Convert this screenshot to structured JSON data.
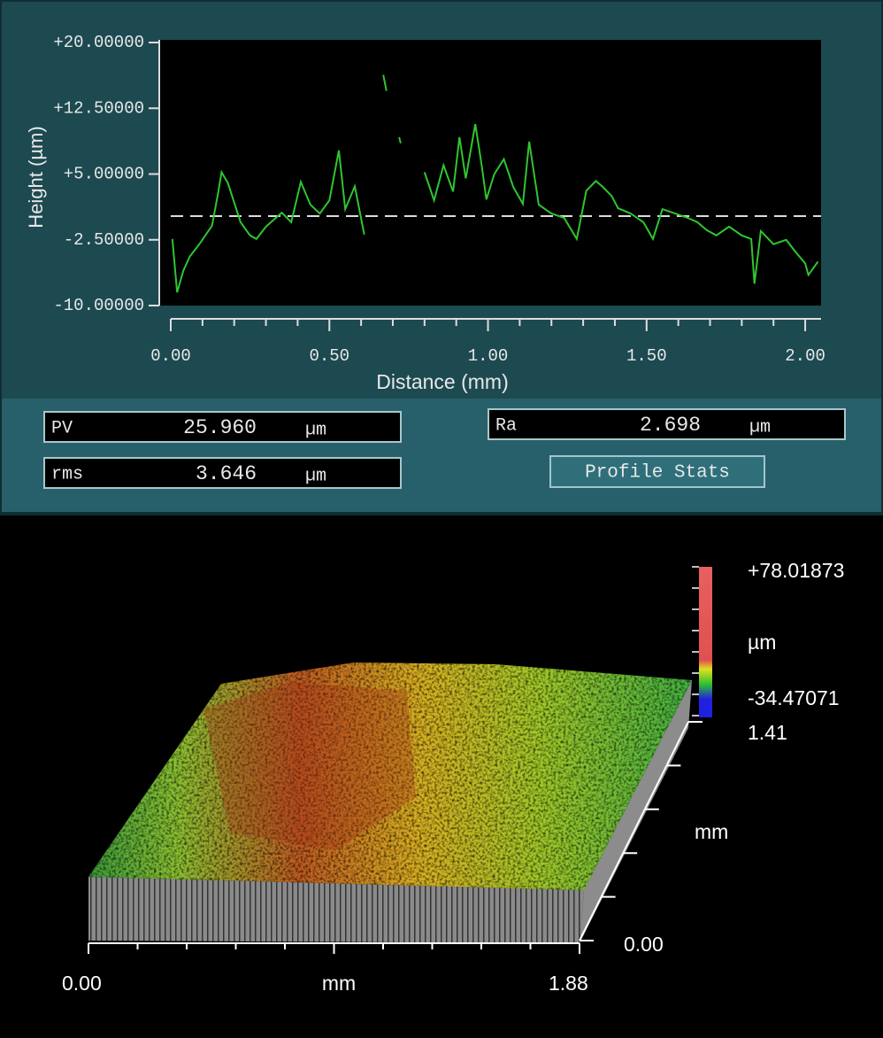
{
  "chart_data": {
    "type": "line",
    "y_label": "Height (µm)",
    "x_label": "Distance (mm)",
    "xlim": [
      0,
      2.05
    ],
    "ylim": [
      -10,
      20
    ],
    "xticks": [
      {
        "value": 0,
        "label": "0.00"
      },
      {
        "value": 0.5,
        "label": "0.50"
      },
      {
        "value": 1,
        "label": "1.00"
      },
      {
        "value": 1.5,
        "label": "1.50"
      },
      {
        "value": 2,
        "label": "2.00"
      }
    ],
    "xminorticks": [
      0.1,
      0.2,
      0.3,
      0.4,
      0.6,
      0.7,
      0.8,
      0.9,
      1.1,
      1.2,
      1.3,
      1.4,
      1.6,
      1.7,
      1.8,
      1.9
    ],
    "yticks": [
      {
        "value": 20,
        "label": "+20.00000"
      },
      {
        "value": 12.5,
        "label": "+12.50000"
      },
      {
        "value": 5,
        "label": "+5.00000"
      },
      {
        "value": -2.5,
        "label": "-2.50000"
      },
      {
        "value": -10,
        "label": "-10.00000"
      }
    ],
    "reference_line": 0.2,
    "series": [
      {
        "color": "#2fc62f",
        "x": [
          0.005,
          0.02,
          0.04,
          0.06,
          0.09,
          0.13,
          0.15,
          0.16,
          0.18,
          0.22,
          0.25,
          0.27,
          0.3,
          0.35,
          0.38,
          0.41,
          0.44,
          0.47,
          0.5,
          0.53,
          0.55,
          0.58,
          0.61,
          null,
          0.67,
          0.68,
          null,
          0.72,
          0.725,
          null,
          0.8,
          0.83,
          0.86,
          0.89,
          0.91,
          0.93,
          0.96,
          0.98,
          0.995,
          1.02,
          1.05,
          1.08,
          1.11,
          1.13,
          1.16,
          1.2,
          1.24,
          1.28,
          1.31,
          1.34,
          1.36,
          1.39,
          1.41,
          1.45,
          1.49,
          1.52,
          1.55,
          1.59,
          1.63,
          1.66,
          1.69,
          1.72,
          1.76,
          1.8,
          1.83,
          1.84,
          1.86,
          1.9,
          1.94,
          1.97,
          2.0,
          2.01,
          2.04
        ],
        "values": [
          -2.4,
          -8.5,
          -6,
          -4.4,
          -3,
          -0.9,
          3,
          5.2,
          4,
          -0.5,
          -2,
          -2.4,
          -1,
          0.6,
          -0.5,
          4.1,
          1.5,
          0.5,
          2,
          7.7,
          1,
          3.6,
          -1.9,
          null,
          16.3,
          14.5,
          null,
          9.2,
          8.5,
          null,
          5.2,
          2,
          6,
          3,
          9.2,
          4.5,
          10.7,
          6,
          2.1,
          5,
          6.7,
          3.5,
          1.6,
          8.7,
          1.5,
          0.5,
          0,
          -2.4,
          3.1,
          4.2,
          3.6,
          2.5,
          1.1,
          0.5,
          -0.5,
          -2.4,
          1,
          0.5,
          0,
          -0.5,
          -1.4,
          -2,
          -1,
          -2,
          -2.4,
          -7.5,
          -1.5,
          -3,
          -2.5,
          -3.9,
          -5.2,
          -6.5,
          -5
        ]
      }
    ]
  },
  "stats": [
    {
      "label": "PV",
      "value": "25.960",
      "unit": "µm"
    },
    {
      "label": "rms",
      "value": "3.646",
      "unit": "µm"
    },
    {
      "label": "Ra",
      "value": "2.698",
      "unit": "µm"
    }
  ],
  "button": "Profile Stats",
  "surface_view": {
    "z_max": "+78.01873",
    "z_unit": "µm",
    "z_min": "-34.47071",
    "y_max": "1.41",
    "y_unit": "mm",
    "y_min": "0.00",
    "x_min": "0.00",
    "x_unit": "mm",
    "x_max": "1.88"
  }
}
